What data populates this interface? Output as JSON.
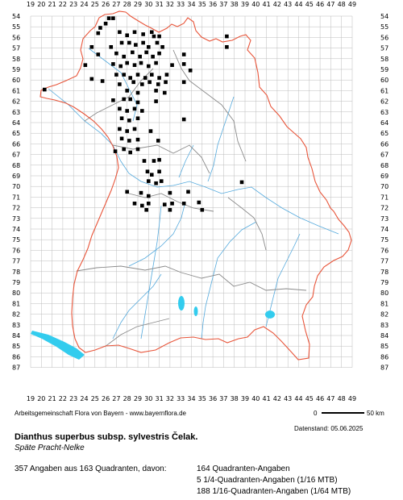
{
  "map": {
    "x_labels": [
      "19",
      "20",
      "21",
      "22",
      "23",
      "24",
      "25",
      "26",
      "27",
      "28",
      "29",
      "30",
      "31",
      "32",
      "33",
      "34",
      "35",
      "36",
      "37",
      "38",
      "39",
      "40",
      "41",
      "42",
      "43",
      "44",
      "45",
      "46",
      "47",
      "48",
      "49"
    ],
    "y_labels": [
      "54",
      "55",
      "56",
      "57",
      "58",
      "59",
      "60",
      "61",
      "62",
      "63",
      "64",
      "65",
      "66",
      "67",
      "68",
      "69",
      "70",
      "71",
      "72",
      "73",
      "74",
      "75",
      "76",
      "77",
      "78",
      "79",
      "80",
      "81",
      "82",
      "83",
      "84",
      "85",
      "86",
      "87"
    ],
    "colors": {
      "grid": "#bcbcbc",
      "state_border": "#e8553a",
      "district_border": "#8a8a8a",
      "rivers": "#55aadd",
      "lakes": "#33ccee",
      "marker": "#000000"
    },
    "marker_legend": {
      "filled_square": "Quadranten-Angabe",
      "small_square": "1/16-Quadranten-Angabe (1/64 MTB)",
      "filled_circle": "1/4-Quadranten-Angabe (1/16 MTB)",
      "triangle": "Angabe"
    },
    "records": [
      {
        "x": 26.3,
        "y": 54.2
      },
      {
        "x": 26.7,
        "y": 54.2
      },
      {
        "x": 25.5,
        "y": 55.1
      },
      {
        "x": 26.0,
        "y": 54.7
      },
      {
        "x": 25.3,
        "y": 55.6
      },
      {
        "x": 27.3,
        "y": 55.5
      },
      {
        "x": 28.0,
        "y": 55.8
      },
      {
        "x": 28.7,
        "y": 55.5
      },
      {
        "x": 29.5,
        "y": 55.7
      },
      {
        "x": 30.3,
        "y": 55.5
      },
      {
        "x": 30.5,
        "y": 55.9
      },
      {
        "x": 31.0,
        "y": 55.9
      },
      {
        "x": 24.7,
        "y": 56.9
      },
      {
        "x": 26.5,
        "y": 56.9
      },
      {
        "x": 27.5,
        "y": 56.5
      },
      {
        "x": 28.2,
        "y": 56.5
      },
      {
        "x": 28.8,
        "y": 56.7
      },
      {
        "x": 29.5,
        "y": 56.5
      },
      {
        "x": 30.0,
        "y": 56.9
      },
      {
        "x": 30.8,
        "y": 56.5
      },
      {
        "x": 31.3,
        "y": 56.9
      },
      {
        "x": 37.3,
        "y": 55.9
      },
      {
        "x": 37.3,
        "y": 56.9
      },
      {
        "x": 25.3,
        "y": 57.6
      },
      {
        "x": 27.0,
        "y": 57.5
      },
      {
        "x": 27.7,
        "y": 57.8
      },
      {
        "x": 28.5,
        "y": 57.4
      },
      {
        "x": 29.2,
        "y": 57.8
      },
      {
        "x": 29.8,
        "y": 57.4
      },
      {
        "x": 30.4,
        "y": 57.8
      },
      {
        "x": 31.0,
        "y": 57.5
      },
      {
        "x": 33.3,
        "y": 57.6
      },
      {
        "x": 24.1,
        "y": 58.6
      },
      {
        "x": 26.7,
        "y": 58.5
      },
      {
        "x": 27.4,
        "y": 58.7
      },
      {
        "x": 28.0,
        "y": 58.4
      },
      {
        "x": 28.7,
        "y": 58.6
      },
      {
        "x": 29.3,
        "y": 58.4
      },
      {
        "x": 30.0,
        "y": 58.7
      },
      {
        "x": 30.7,
        "y": 58.4
      },
      {
        "x": 32.2,
        "y": 58.6
      },
      {
        "x": 33.3,
        "y": 58.5
      },
      {
        "x": 27.0,
        "y": 59.5
      },
      {
        "x": 27.7,
        "y": 59.5
      },
      {
        "x": 28.3,
        "y": 59.8
      },
      {
        "x": 29.0,
        "y": 59.5
      },
      {
        "x": 29.7,
        "y": 59.8
      },
      {
        "x": 30.3,
        "y": 59.5
      },
      {
        "x": 31.0,
        "y": 59.8
      },
      {
        "x": 31.7,
        "y": 59.5
      },
      {
        "x": 33.9,
        "y": 59.1
      },
      {
        "x": 24.7,
        "y": 59.9
      },
      {
        "x": 25.7,
        "y": 60.1
      },
      {
        "x": 27.3,
        "y": 60.4
      },
      {
        "x": 28.6,
        "y": 60.2
      },
      {
        "x": 29.4,
        "y": 60.4
      },
      {
        "x": 30.1,
        "y": 60.2
      },
      {
        "x": 30.9,
        "y": 60.4
      },
      {
        "x": 31.6,
        "y": 60.2
      },
      {
        "x": 33.3,
        "y": 60.2
      },
      {
        "x": 20.3,
        "y": 60.9
      },
      {
        "x": 28.0,
        "y": 61.0
      },
      {
        "x": 29.0,
        "y": 61.2
      },
      {
        "x": 30.7,
        "y": 61.0
      },
      {
        "x": 31.5,
        "y": 61.2
      },
      {
        "x": 26.7,
        "y": 61.9
      },
      {
        "x": 27.7,
        "y": 61.8
      },
      {
        "x": 28.3,
        "y": 61.8
      },
      {
        "x": 29.0,
        "y": 62.1
      },
      {
        "x": 30.7,
        "y": 62.0
      },
      {
        "x": 27.3,
        "y": 62.7
      },
      {
        "x": 28.0,
        "y": 62.9
      },
      {
        "x": 28.7,
        "y": 62.7
      },
      {
        "x": 29.4,
        "y": 62.9
      },
      {
        "x": 27.5,
        "y": 63.6
      },
      {
        "x": 28.2,
        "y": 63.8
      },
      {
        "x": 29.0,
        "y": 63.6
      },
      {
        "x": 33.3,
        "y": 63.7
      },
      {
        "x": 27.3,
        "y": 64.6
      },
      {
        "x": 28.0,
        "y": 64.8
      },
      {
        "x": 28.7,
        "y": 64.6
      },
      {
        "x": 30.2,
        "y": 64.8
      },
      {
        "x": 27.5,
        "y": 65.5
      },
      {
        "x": 28.2,
        "y": 65.7
      },
      {
        "x": 29.0,
        "y": 65.6
      },
      {
        "x": 30.9,
        "y": 65.7
      },
      {
        "x": 26.9,
        "y": 66.7
      },
      {
        "x": 27.7,
        "y": 66.5
      },
      {
        "x": 28.3,
        "y": 66.8
      },
      {
        "x": 29.0,
        "y": 66.5
      },
      {
        "x": 29.6,
        "y": 67.6
      },
      {
        "x": 30.5,
        "y": 67.6
      },
      {
        "x": 31.0,
        "y": 67.5
      },
      {
        "x": 29.9,
        "y": 68.6
      },
      {
        "x": 30.3,
        "y": 68.9
      },
      {
        "x": 31.0,
        "y": 68.6
      },
      {
        "x": 30.0,
        "y": 69.5
      },
      {
        "x": 30.7,
        "y": 69.7
      },
      {
        "x": 31.2,
        "y": 69.5
      },
      {
        "x": 28.0,
        "y": 70.5
      },
      {
        "x": 29.3,
        "y": 70.6
      },
      {
        "x": 30.0,
        "y": 70.9
      },
      {
        "x": 32.0,
        "y": 70.6
      },
      {
        "x": 33.7,
        "y": 70.5
      },
      {
        "x": 28.7,
        "y": 71.6
      },
      {
        "x": 29.4,
        "y": 71.8
      },
      {
        "x": 30.0,
        "y": 71.6
      },
      {
        "x": 31.5,
        "y": 71.7
      },
      {
        "x": 32.2,
        "y": 71.6
      },
      {
        "x": 33.3,
        "y": 71.6
      },
      {
        "x": 34.7,
        "y": 71.5
      },
      {
        "x": 38.7,
        "y": 69.6
      },
      {
        "x": 29.8,
        "y": 72.2
      },
      {
        "x": 32.0,
        "y": 72.2
      },
      {
        "x": 35.0,
        "y": 72.2
      }
    ]
  },
  "credits": "Arbeitsgemeinschaft Flora von Bayern - www.bayernflora.de",
  "scale": {
    "zero": "0",
    "distance": "50 km"
  },
  "date": "Datenstand: 05.06.2025",
  "title": "Dianthus superbus subsp. sylvestris Čelak.",
  "subtitle": "Späte Pracht-Nelke",
  "stats": {
    "main": "357 Angaben aus 163 Quadranten, davon:",
    "quadrant": "164 Quadranten-Angaben",
    "sixteenth": "5 1/4-Quadranten-Angaben (1/16 MTB)",
    "sixtyfourth": "188 1/16-Quadranten-Angaben (1/64 MTB)"
  }
}
